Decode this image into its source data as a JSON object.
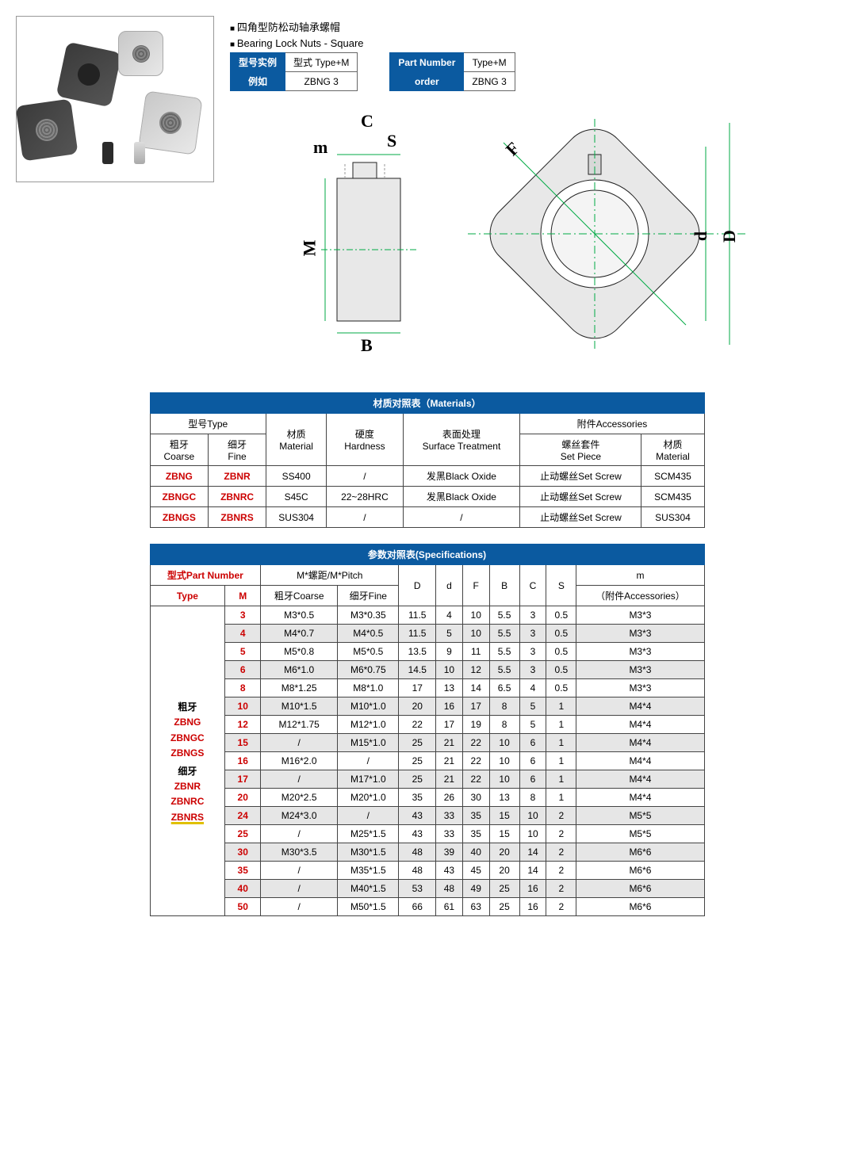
{
  "header": {
    "line1_cn": "四角型防松动轴承螺帽",
    "line2_en": "Bearing Lock Nuts  - Square"
  },
  "mini_cn": {
    "h1": "型号实例",
    "h1v": "型式  Type+M",
    "h2": "例如",
    "h2v": "ZBNG 3"
  },
  "mini_en": {
    "h1": "Part Number",
    "h1v": "Type+M",
    "h2": "order",
    "h2v": "ZBNG 3"
  },
  "dims": {
    "C": "C",
    "S": "S",
    "m": "m",
    "M": "M",
    "B": "B",
    "F": "F",
    "d": "d",
    "D": "D"
  },
  "materials": {
    "title": "材质对照表（Materials）",
    "hdr": {
      "type": "型号Type",
      "coarse": "粗牙\nCoarse",
      "fine": "细牙\nFine",
      "material": "材质\nMaterial",
      "hardness": "硬度\nHardness",
      "surface": "表面处理\nSurface Treatment",
      "acc": "附件Accessories",
      "setpiece": "螺丝套件\nSet Piece",
      "accmat": "材质\nMaterial"
    },
    "rows": [
      {
        "c": "ZBNG",
        "f": "ZBNR",
        "mat": "SS400",
        "h": "/",
        "s": "发黑Black Oxide",
        "sp": "止动螺丝Set Screw",
        "am": "SCM435"
      },
      {
        "c": "ZBNGC",
        "f": "ZBNRC",
        "mat": "S45C",
        "h": "22~28HRC",
        "s": "发黑Black Oxide",
        "sp": "止动螺丝Set Screw",
        "am": "SCM435"
      },
      {
        "c": "ZBNGS",
        "f": "ZBNRS",
        "mat": "SUS304",
        "h": "/",
        "s": "/",
        "sp": "止动螺丝Set Screw",
        "am": "SUS304"
      }
    ]
  },
  "spec": {
    "title": "参数对照表(Specifications)",
    "hdr": {
      "pn": "型式Part Number",
      "type": "Type",
      "M": "M",
      "pitch": "M*螺距/M*Pitch",
      "coarse": "粗牙Coarse",
      "fine": "细牙Fine",
      "D": "D",
      "d": "d",
      "F": "F",
      "B": "B",
      "C": "C",
      "S": "S",
      "m": "m",
      "macc": "（附件Accessories）"
    },
    "typecell": {
      "lbl1": "粗牙",
      "t1": "ZBNG",
      "t2": "ZBNGC",
      "t3": "ZBNGS",
      "lbl2": "细牙",
      "t4": "ZBNR",
      "t5": "ZBNRC",
      "t6": "ZBNRS"
    },
    "rows": [
      {
        "M": "3",
        "c": "M3*0.5",
        "f": "M3*0.35",
        "D": "11.5",
        "d": "4",
        "F": "10",
        "B": "5.5",
        "C": "3",
        "S": "0.5",
        "m": "M3*3",
        "alt": false
      },
      {
        "M": "4",
        "c": "M4*0.7",
        "f": "M4*0.5",
        "D": "11.5",
        "d": "5",
        "F": "10",
        "B": "5.5",
        "C": "3",
        "S": "0.5",
        "m": "M3*3",
        "alt": true
      },
      {
        "M": "5",
        "c": "M5*0.8",
        "f": "M5*0.5",
        "D": "13.5",
        "d": "9",
        "F": "11",
        "B": "5.5",
        "C": "3",
        "S": "0.5",
        "m": "M3*3",
        "alt": false
      },
      {
        "M": "6",
        "c": "M6*1.0",
        "f": "M6*0.75",
        "D": "14.5",
        "d": "10",
        "F": "12",
        "B": "5.5",
        "C": "3",
        "S": "0.5",
        "m": "M3*3",
        "alt": true
      },
      {
        "M": "8",
        "c": "M8*1.25",
        "f": "M8*1.0",
        "D": "17",
        "d": "13",
        "F": "14",
        "B": "6.5",
        "C": "4",
        "S": "0.5",
        "m": "M3*3",
        "alt": false
      },
      {
        "M": "10",
        "c": "M10*1.5",
        "f": "M10*1.0",
        "D": "20",
        "d": "16",
        "F": "17",
        "B": "8",
        "C": "5",
        "S": "1",
        "m": "M4*4",
        "alt": true
      },
      {
        "M": "12",
        "c": "M12*1.75",
        "f": "M12*1.0",
        "D": "22",
        "d": "17",
        "F": "19",
        "B": "8",
        "C": "5",
        "S": "1",
        "m": "M4*4",
        "alt": false
      },
      {
        "M": "15",
        "c": "/",
        "f": "M15*1.0",
        "D": "25",
        "d": "21",
        "F": "22",
        "B": "10",
        "C": "6",
        "S": "1",
        "m": "M4*4",
        "alt": true
      },
      {
        "M": "16",
        "c": "M16*2.0",
        "f": "/",
        "D": "25",
        "d": "21",
        "F": "22",
        "B": "10",
        "C": "6",
        "S": "1",
        "m": "M4*4",
        "alt": false
      },
      {
        "M": "17",
        "c": "/",
        "f": "M17*1.0",
        "D": "25",
        "d": "21",
        "F": "22",
        "B": "10",
        "C": "6",
        "S": "1",
        "m": "M4*4",
        "alt": true
      },
      {
        "M": "20",
        "c": "M20*2.5",
        "f": "M20*1.0",
        "D": "35",
        "d": "26",
        "F": "30",
        "B": "13",
        "C": "8",
        "S": "1",
        "m": "M4*4",
        "alt": false
      },
      {
        "M": "24",
        "c": "M24*3.0",
        "f": "/",
        "D": "43",
        "d": "33",
        "F": "35",
        "B": "15",
        "C": "10",
        "S": "2",
        "m": "M5*5",
        "alt": true
      },
      {
        "M": "25",
        "c": "/",
        "f": "M25*1.5",
        "D": "43",
        "d": "33",
        "F": "35",
        "B": "15",
        "C": "10",
        "S": "2",
        "m": "M5*5",
        "alt": false
      },
      {
        "M": "30",
        "c": "M30*3.5",
        "f": "M30*1.5",
        "D": "48",
        "d": "39",
        "F": "40",
        "B": "20",
        "C": "14",
        "S": "2",
        "m": "M6*6",
        "alt": true
      },
      {
        "M": "35",
        "c": "/",
        "f": "M35*1.5",
        "D": "48",
        "d": "43",
        "F": "45",
        "B": "20",
        "C": "14",
        "S": "2",
        "m": "M6*6",
        "alt": false
      },
      {
        "M": "40",
        "c": "/",
        "f": "M40*1.5",
        "D": "53",
        "d": "48",
        "F": "49",
        "B": "25",
        "C": "16",
        "S": "2",
        "m": "M6*6",
        "alt": true
      },
      {
        "M": "50",
        "c": "/",
        "f": "M50*1.5",
        "D": "66",
        "d": "61",
        "F": "63",
        "B": "25",
        "C": "16",
        "S": "2",
        "m": "M6*6",
        "alt": false
      }
    ]
  },
  "colors": {
    "blue": "#0b5aa0",
    "red": "#c00",
    "border": "#444",
    "altbg": "#e6e6e6"
  }
}
